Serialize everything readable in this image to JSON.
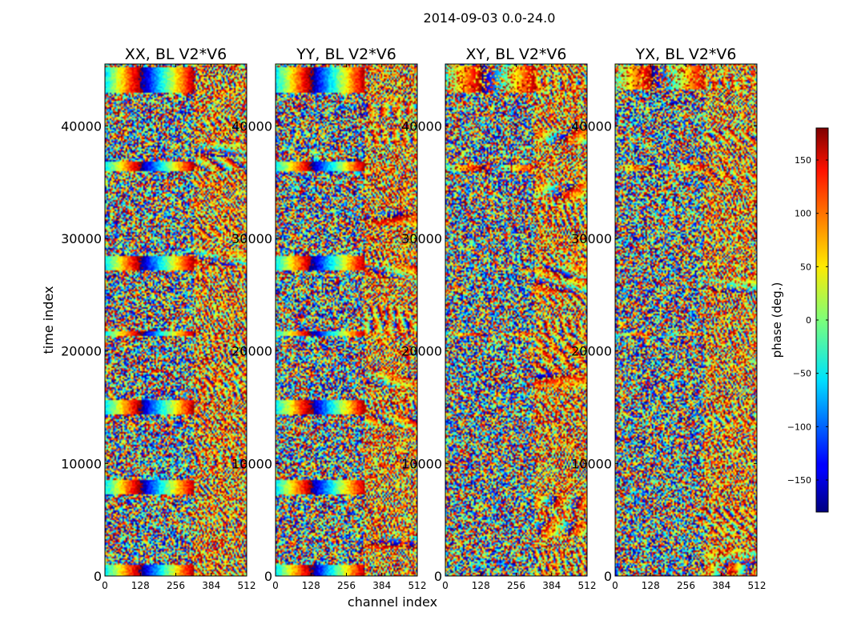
{
  "chart_data": {
    "type": "heatmap",
    "suptitle": "2014-09-03 0.0-24.0",
    "xlabel": "channel index",
    "ylabel": "time index",
    "xlim": [
      0,
      512
    ],
    "ylim": [
      0,
      45500
    ],
    "xticks": [
      0,
      128,
      256,
      384,
      512
    ],
    "yticks": [
      0,
      10000,
      20000,
      30000,
      40000
    ],
    "colormap": "jet",
    "colorbar": {
      "label": "phase (deg.)",
      "range": [
        -180,
        180
      ],
      "ticks": [
        150,
        100,
        50,
        0,
        -50,
        -100,
        -150
      ],
      "tick_labels": [
        "150",
        "100",
        "50",
        "0",
        "−50",
        "−100",
        "−150"
      ]
    },
    "panels": [
      {
        "title": "XX, BL V2*V6",
        "band_edge_channel": 320,
        "fringe_bands": [
          [
            42900,
            45200
          ],
          [
            36000,
            36800
          ],
          [
            27200,
            28400
          ],
          [
            21300,
            21700
          ],
          [
            14300,
            15600
          ],
          [
            7200,
            8600
          ],
          [
            0,
            1000
          ]
        ],
        "fringe_strength": 1.0
      },
      {
        "title": "YY, BL V2*V6",
        "band_edge_channel": 320,
        "fringe_bands": [
          [
            42900,
            45200
          ],
          [
            36000,
            36800
          ],
          [
            27200,
            28400
          ],
          [
            21300,
            21700
          ],
          [
            14300,
            15600
          ],
          [
            7200,
            8600
          ],
          [
            0,
            1000
          ]
        ],
        "fringe_strength": 1.0
      },
      {
        "title": "XY, BL V2*V6",
        "band_edge_channel": 320,
        "fringe_bands": [
          [
            43000,
            45400
          ],
          [
            36000,
            36600
          ],
          [
            21300,
            21600
          ]
        ],
        "fringe_strength": 0.55
      },
      {
        "title": "YX, BL V2*V6",
        "band_edge_channel": 320,
        "fringe_bands": [
          [
            43200,
            45400
          ],
          [
            36000,
            36600
          ],
          [
            21300,
            21600
          ]
        ],
        "fringe_strength": 0.5
      }
    ]
  }
}
